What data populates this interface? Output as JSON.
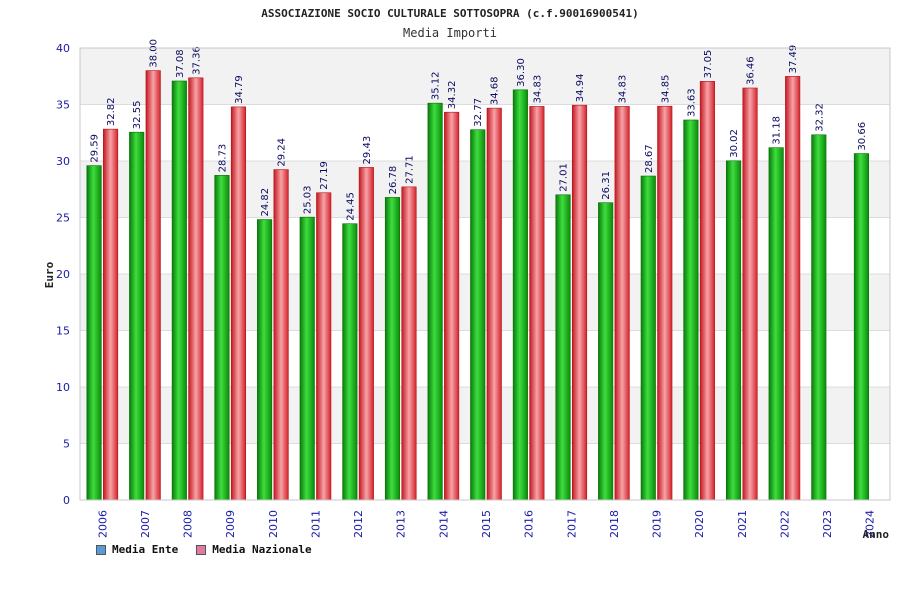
{
  "chart_data": {
    "type": "bar",
    "title": "ASSOCIAZIONE SOCIO CULTURALE SOTTOSOPRA (c.f.90016900541)",
    "subtitle": "Media Importi",
    "ylabel": "Euro",
    "xlabel": "Anno",
    "ylim": [
      0,
      40
    ],
    "yticks": [
      0,
      5,
      10,
      15,
      20,
      25,
      30,
      35,
      40
    ],
    "categories": [
      "2006",
      "2007",
      "2008",
      "2009",
      "2010",
      "2011",
      "2012",
      "2013",
      "2014",
      "2015",
      "2016",
      "2017",
      "2018",
      "2019",
      "2020",
      "2021",
      "2022",
      "2023",
      "2024"
    ],
    "series": [
      {
        "name": "Media Ente",
        "color": "#22b522",
        "values": [
          29.59,
          32.55,
          37.08,
          28.73,
          24.82,
          25.03,
          24.45,
          26.78,
          35.12,
          32.77,
          36.3,
          27.01,
          26.31,
          28.67,
          33.63,
          30.02,
          31.18,
          32.32,
          30.66
        ],
        "labels": [
          "29.59",
          "32.55",
          "37.08",
          "28.73",
          "24.82",
          "25.03",
          "24.45",
          "26.78",
          "35.12",
          "32.77",
          "36.30",
          "27.01",
          "26.31",
          "28.67",
          "33.63",
          "30.02",
          "31.18",
          "32.32",
          "30.66"
        ]
      },
      {
        "name": "Media Nazionale",
        "color": "#e8343c",
        "values": [
          32.82,
          38.0,
          37.36,
          34.79,
          29.24,
          27.19,
          29.43,
          27.71,
          34.32,
          34.68,
          34.83,
          34.94,
          34.83,
          34.85,
          37.05,
          36.46,
          37.49,
          null,
          null
        ],
        "labels": [
          "32.82",
          "38.00",
          "37.36",
          "34.79",
          "29.24",
          "27.19",
          "29.43",
          "27.71",
          "34.32",
          "34.68",
          "34.83",
          "34.94",
          "34.83",
          "34.85",
          "37.05",
          "36.46",
          "37.49",
          null,
          null
        ]
      }
    ],
    "legend": [
      {
        "name": "Media Ente",
        "color": "#5b9bd5"
      },
      {
        "name": "Media Nazionale",
        "color": "#e07aa0"
      }
    ],
    "grid": true,
    "legend_position": "bottom-left"
  }
}
